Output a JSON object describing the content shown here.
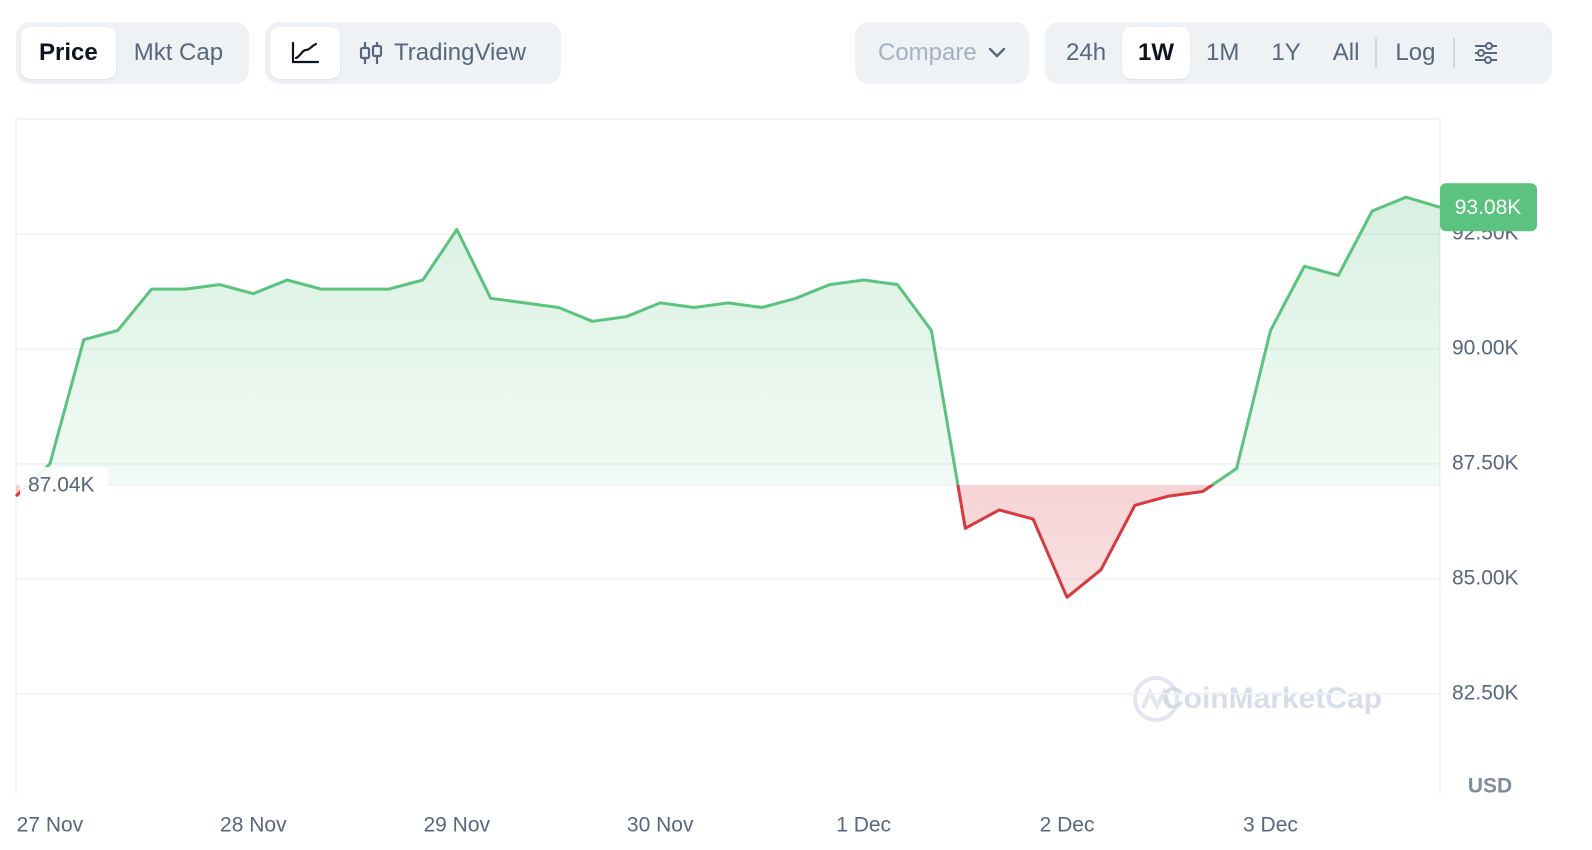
{
  "toolbar": {
    "views": [
      "Price",
      "Mkt Cap"
    ],
    "active_view": 0,
    "modes": [
      "TradingView"
    ],
    "compare": "Compare",
    "ranges": [
      "24h",
      "1W",
      "1M",
      "1Y",
      "All"
    ],
    "active_range": 1,
    "scale": "Log"
  },
  "chart_data": {
    "type": "line",
    "currency": "USD",
    "watermark": "CoinMarketCap",
    "categories": [
      null,
      "27 Nov",
      null,
      null,
      null,
      null,
      null,
      "28 Nov",
      null,
      null,
      null,
      null,
      null,
      "29 Nov",
      null,
      null,
      null,
      null,
      null,
      "30 Nov",
      null,
      null,
      null,
      null,
      null,
      "1 Dec",
      null,
      null,
      null,
      null,
      null,
      "2 Dec",
      null,
      null,
      null,
      null,
      null,
      "3 Dec",
      null,
      null,
      null,
      null,
      null
    ],
    "values": [
      86800,
      87500,
      90200,
      90400,
      91300,
      91300,
      91400,
      91200,
      91500,
      91300,
      91300,
      91300,
      91500,
      92600,
      91100,
      91000,
      90900,
      90600,
      90700,
      91000,
      90900,
      91000,
      90900,
      91100,
      91400,
      91500,
      91400,
      90400,
      86100,
      86500,
      86300,
      84600,
      85200,
      86600,
      86800,
      86900,
      87400,
      90400,
      91800,
      91600,
      93000,
      93300,
      93080
    ],
    "last_value_label": "93.08K",
    "baseline": {
      "value": 87040,
      "label": "87.04K"
    },
    "up_color": "#5bc37f",
    "down_color": "#d8383f",
    "ylim": [
      80300,
      95000
    ],
    "yticks": [
      {
        "value": 82500,
        "label": "82.50K"
      },
      {
        "value": 85000,
        "label": "85.00K"
      },
      {
        "value": 87500,
        "label": "87.50K"
      },
      {
        "value": 90000,
        "label": "90.00K"
      },
      {
        "value": 92500,
        "label": "92.50K"
      }
    ],
    "grid": true
  }
}
